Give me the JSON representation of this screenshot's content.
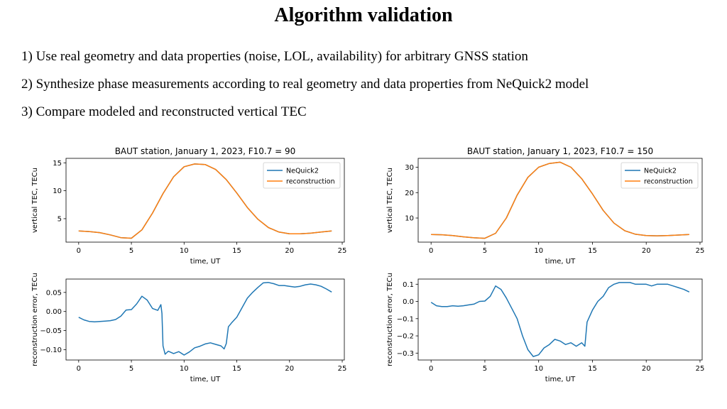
{
  "slide": {
    "title": "Algorithm validation",
    "bullets": [
      "1) Use real geometry and data properties (noise, LOL, availability) for arbitrary GNSS station",
      "2) Synthesize phase measurements according to real geometry and data properties from NeQuick2 model",
      "3) Compare modeled and reconstructed vertical TEC"
    ]
  },
  "colors": {
    "nequick": "#1f77b4",
    "reconstruction": "#ff7f0e"
  },
  "chart_data": [
    {
      "type": "line",
      "title": "BAUT station, January 1, 2023, F10.7 = 90",
      "xlabel": "time, UT",
      "ylabel": "vertical TEC, TECu",
      "xlim": [
        -1.2,
        25.2
      ],
      "ylim": [
        0.8,
        15.8
      ],
      "xticks": [
        0,
        5,
        10,
        15,
        20,
        25
      ],
      "yticks": [
        5,
        10,
        15
      ],
      "legend": "top-right",
      "x": [
        0,
        1,
        2,
        3,
        4,
        5,
        6,
        7,
        8,
        9,
        10,
        11,
        12,
        13,
        14,
        15,
        16,
        17,
        18,
        19,
        20,
        21,
        22,
        23,
        24
      ],
      "series": [
        {
          "name": "NeQuick2",
          "color": "#1f77b4",
          "values": [
            2.8,
            2.7,
            2.5,
            2.1,
            1.6,
            1.5,
            3.0,
            6.0,
            9.5,
            12.5,
            14.3,
            14.8,
            14.7,
            13.8,
            12.0,
            9.6,
            7.0,
            4.9,
            3.4,
            2.6,
            2.3,
            2.3,
            2.4,
            2.6,
            2.8
          ]
        },
        {
          "name": "reconstruction",
          "color": "#ff7f0e",
          "values": [
            2.8,
            2.7,
            2.5,
            2.1,
            1.6,
            1.5,
            3.0,
            6.0,
            9.5,
            12.5,
            14.3,
            14.8,
            14.7,
            13.8,
            12.0,
            9.6,
            7.0,
            4.9,
            3.4,
            2.6,
            2.3,
            2.3,
            2.4,
            2.6,
            2.8
          ]
        }
      ]
    },
    {
      "type": "line",
      "title": "BAUT station, January 1, 2023, F10.7 = 150",
      "xlabel": "time, UT",
      "ylabel": "vertical TEC, TECu",
      "xlim": [
        -1.2,
        25.2
      ],
      "ylim": [
        0.5,
        33.5
      ],
      "xticks": [
        0,
        5,
        10,
        15,
        20,
        25
      ],
      "yticks": [
        10,
        20,
        30
      ],
      "legend": "top-right",
      "x": [
        0,
        1,
        2,
        3,
        4,
        5,
        6,
        7,
        8,
        9,
        10,
        11,
        12,
        13,
        14,
        15,
        16,
        17,
        18,
        19,
        20,
        21,
        22,
        23,
        24
      ],
      "series": [
        {
          "name": "NeQuick2",
          "color": "#1f77b4",
          "values": [
            3.5,
            3.4,
            3.1,
            2.6,
            2.2,
            2.0,
            4.0,
            10.0,
            19.0,
            26.0,
            30.0,
            31.5,
            32.0,
            30.0,
            25.5,
            19.5,
            13.0,
            8.0,
            5.0,
            3.6,
            3.1,
            3.0,
            3.1,
            3.3,
            3.5
          ]
        },
        {
          "name": "reconstruction",
          "color": "#ff7f0e",
          "values": [
            3.5,
            3.4,
            3.1,
            2.6,
            2.2,
            2.0,
            4.0,
            10.0,
            19.0,
            26.0,
            30.0,
            31.5,
            32.0,
            30.0,
            25.5,
            19.5,
            13.0,
            8.0,
            5.0,
            3.6,
            3.1,
            3.0,
            3.1,
            3.3,
            3.5
          ]
        }
      ]
    },
    {
      "type": "line",
      "title": "",
      "xlabel": "time, UT",
      "ylabel": "reconstruction error, TECu",
      "xlim": [
        -1.2,
        25.2
      ],
      "ylim": [
        -0.127,
        0.085
      ],
      "xticks": [
        0,
        5,
        10,
        15,
        20,
        25
      ],
      "yticks": [
        -0.1,
        -0.05,
        0.0,
        0.05
      ],
      "yticklabels": [
        "−0.10",
        "−0.05",
        "0.00",
        "0.05"
      ],
      "legend": "none",
      "x": [
        0,
        0.5,
        1,
        1.5,
        2,
        2.5,
        3,
        3.5,
        4,
        4.5,
        5,
        5.5,
        6,
        6.5,
        7,
        7.5,
        7.8,
        7.9,
        8.0,
        8.2,
        8.5,
        9,
        9.5,
        10,
        10.5,
        11,
        11.5,
        12,
        12.5,
        13,
        13.5,
        13.8,
        14,
        14.2,
        14.5,
        15,
        15.5,
        16,
        16.5,
        17,
        17.5,
        18,
        18.5,
        19,
        19.5,
        20,
        20.5,
        21,
        21.5,
        22,
        22.5,
        23,
        23.5,
        24
      ],
      "series": [
        {
          "name": "",
          "color": "#1f77b4",
          "values": [
            -0.015,
            -0.022,
            -0.026,
            -0.027,
            -0.026,
            -0.025,
            -0.024,
            -0.021,
            -0.012,
            0.004,
            0.005,
            0.02,
            0.04,
            0.03,
            0.008,
            0.003,
            0.018,
            -0.005,
            -0.09,
            -0.112,
            -0.104,
            -0.11,
            -0.105,
            -0.114,
            -0.106,
            -0.095,
            -0.091,
            -0.085,
            -0.082,
            -0.086,
            -0.09,
            -0.098,
            -0.084,
            -0.04,
            -0.03,
            -0.015,
            0.01,
            0.035,
            0.05,
            0.063,
            0.075,
            0.076,
            0.073,
            0.068,
            0.068,
            0.066,
            0.064,
            0.066,
            0.07,
            0.072,
            0.07,
            0.066,
            0.059,
            0.051
          ]
        }
      ]
    },
    {
      "type": "line",
      "title": "",
      "xlabel": "time, UT",
      "ylabel": "reconstruction error, TECu",
      "xlim": [
        -1.2,
        25.2
      ],
      "ylim": [
        -0.34,
        0.13
      ],
      "xticks": [
        0,
        5,
        10,
        15,
        20,
        25
      ],
      "yticks": [
        -0.3,
        -0.2,
        -0.1,
        0.0,
        0.1
      ],
      "yticklabels": [
        "−0.3",
        "−0.2",
        "−0.1",
        "0.0",
        "0.1"
      ],
      "legend": "none",
      "x": [
        0,
        0.5,
        1,
        1.5,
        2,
        2.5,
        3,
        3.5,
        4,
        4.5,
        5,
        5.5,
        6,
        6.5,
        7,
        7.5,
        8,
        8.5,
        9,
        9.5,
        10,
        10.5,
        11,
        11.5,
        12,
        12.5,
        13,
        13.5,
        14,
        14.3,
        14.5,
        15,
        15.5,
        16,
        16.5,
        17,
        17.5,
        18,
        18.5,
        19,
        19.5,
        20,
        20.5,
        21,
        21.5,
        22,
        22.5,
        23,
        23.5,
        24
      ],
      "series": [
        {
          "name": "",
          "color": "#1f77b4",
          "values": [
            -0.005,
            -0.025,
            -0.03,
            -0.03,
            -0.025,
            -0.028,
            -0.025,
            -0.02,
            -0.015,
            0.0,
            0.002,
            0.03,
            0.09,
            0.07,
            0.02,
            -0.04,
            -0.1,
            -0.2,
            -0.28,
            -0.32,
            -0.31,
            -0.27,
            -0.25,
            -0.22,
            -0.23,
            -0.25,
            -0.24,
            -0.26,
            -0.24,
            -0.26,
            -0.12,
            -0.05,
            0.0,
            0.03,
            0.08,
            0.1,
            0.11,
            0.11,
            0.11,
            0.1,
            0.1,
            0.1,
            0.09,
            0.1,
            0.1,
            0.1,
            0.09,
            0.08,
            0.07,
            0.055
          ]
        }
      ]
    }
  ]
}
